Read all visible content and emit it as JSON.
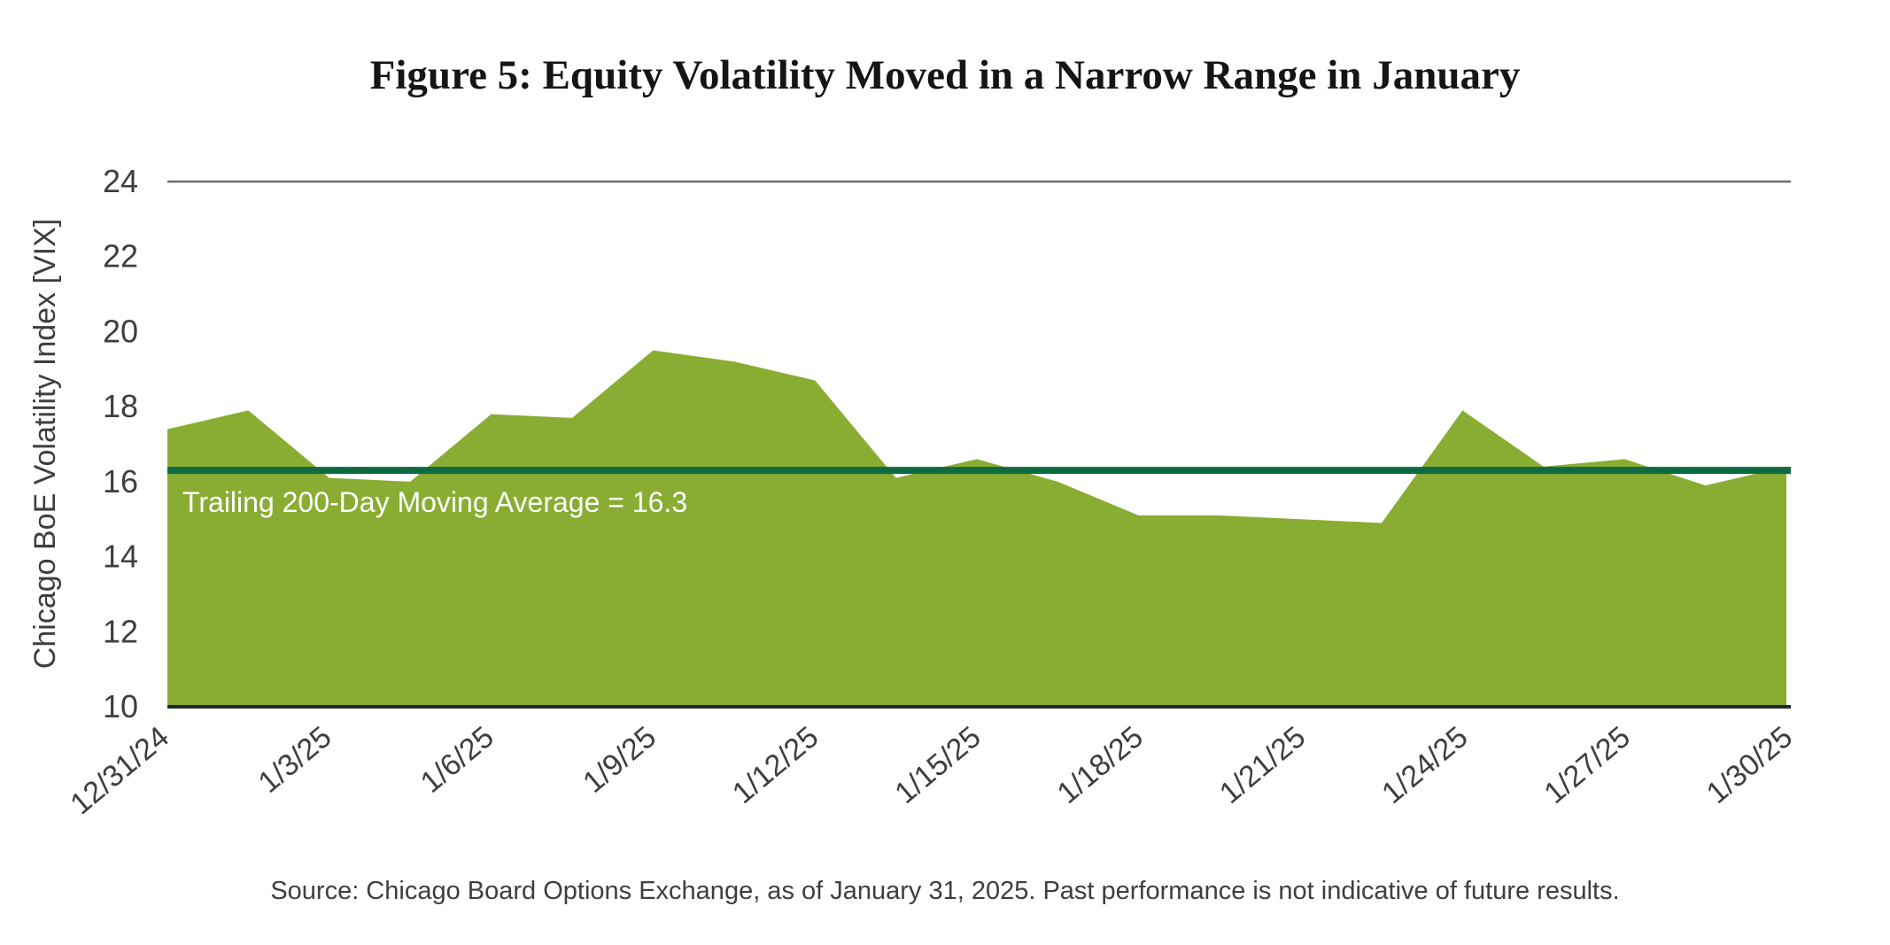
{
  "figure": {
    "title": "Figure 5: Equity Volatility Moved in a Narrow Range in January",
    "source": "Source: Chicago Board Options Exchange, as of January 31, 2025. Past performance is not indicative of future results."
  },
  "chart_data": {
    "type": "area",
    "title": "Figure 5: Equity Volatility Moved in a Narrow Range in January",
    "xlabel": "",
    "ylabel": "Chicago BoE Volatility Index [VIX]",
    "ylim": [
      10,
      24
    ],
    "y_ticks": [
      24,
      22,
      20,
      18,
      16,
      14,
      12,
      10
    ],
    "x_tick_labels": [
      "12/31/24",
      "1/3/25",
      "1/6/25",
      "1/9/25",
      "1/12/25",
      "1/15/25",
      "1/18/25",
      "1/21/25",
      "1/24/25",
      "1/27/25",
      "1/30/25"
    ],
    "grid": "single horizontal border line at y=24 plus baseline at y=10, no other gridlines",
    "legend": "none",
    "series": [
      {
        "name": "Chicago BoE Volatility Index (VIX)",
        "type": "area",
        "color": "#89ad32",
        "x": [
          "12/31/24",
          "1/2/25",
          "1/3/25",
          "1/6/25",
          "1/7/25",
          "1/8/25",
          "1/10/25",
          "1/13/25",
          "1/14/25",
          "1/15/25",
          "1/16/25",
          "1/17/25",
          "1/21/25",
          "1/22/25",
          "1/23/25",
          "1/24/25",
          "1/27/25",
          "1/28/25",
          "1/29/25",
          "1/30/25",
          "1/31/25"
        ],
        "values": [
          17.4,
          17.9,
          16.1,
          16.0,
          17.8,
          17.7,
          19.5,
          19.2,
          18.7,
          16.1,
          16.6,
          16.0,
          15.1,
          15.1,
          15.0,
          14.9,
          17.9,
          16.4,
          16.6,
          15.9,
          16.4
        ]
      },
      {
        "name": "Trailing 200-Day Moving Average",
        "type": "horizontal-line",
        "color": "#0e6a42",
        "value": 16.3
      }
    ],
    "annotation": {
      "text": "Trailing 200-Day Moving Average = 16.3",
      "color": "#ffffff"
    }
  },
  "colors": {
    "gridline": "#6a6c6e",
    "axis": "#262626",
    "tick_text": "#3d3e40"
  }
}
